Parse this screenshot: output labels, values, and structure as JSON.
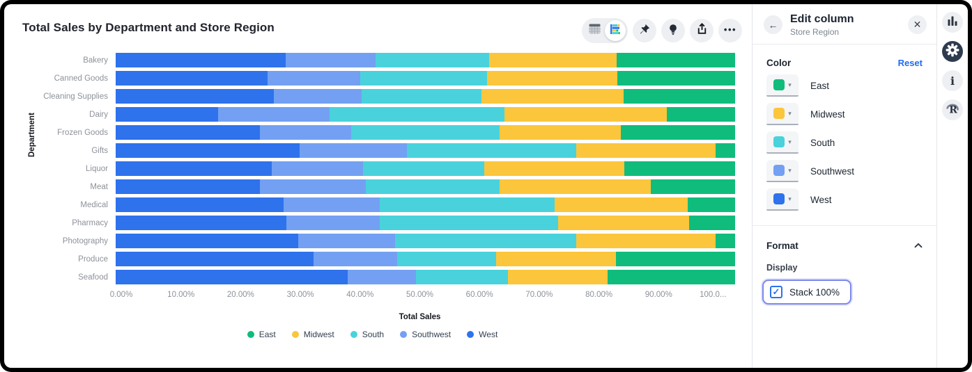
{
  "header": {
    "title": "Total Sales by Department and Store Region"
  },
  "toolbar": {
    "icons": [
      "table-view",
      "chart-view",
      "pin",
      "lightbulb",
      "share",
      "more"
    ]
  },
  "chart_data": {
    "type": "bar",
    "orientation": "horizontal",
    "stacked": true,
    "stack_100_percent": true,
    "title": "Total Sales by Department and Store Region",
    "xlabel": "Total Sales",
    "ylabel": "Department",
    "xlim": [
      0,
      100
    ],
    "grid": false,
    "x_ticks": [
      "0.00%",
      "10.00%",
      "20.00%",
      "30.00%",
      "40.00%",
      "50.00%",
      "60.00%",
      "70.00%",
      "80.00%",
      "90.00%",
      "100.0..."
    ],
    "categories": [
      "Bakery",
      "Canned Goods",
      "Cleaning Supplies",
      "Dairy",
      "Frozen Goods",
      "Gifts",
      "Liquor",
      "Meat",
      "Medical",
      "Pharmacy",
      "Photography",
      "Produce",
      "Seafood"
    ],
    "series": [
      {
        "name": "West",
        "color": "#2E72EC",
        "values": [
          27.5,
          24.5,
          25.5,
          16.5,
          23.3,
          29.7,
          25.2,
          23.3,
          27.1,
          27.6,
          29.5,
          32.0,
          37.5
        ]
      },
      {
        "name": "Southwest",
        "color": "#73A0F2",
        "values": [
          14.5,
          15.0,
          14.2,
          18.0,
          14.7,
          17.3,
          14.7,
          17.1,
          15.5,
          15.0,
          15.6,
          13.4,
          11.0
        ]
      },
      {
        "name": "South",
        "color": "#49D2DC",
        "values": [
          18.3,
          20.5,
          19.4,
          28.3,
          24.0,
          27.3,
          19.6,
          21.6,
          28.3,
          28.8,
          29.2,
          16.0,
          14.8
        ]
      },
      {
        "name": "Midwest",
        "color": "#FBC63C",
        "values": [
          20.6,
          21.0,
          22.9,
          26.2,
          19.6,
          22.6,
          22.6,
          24.4,
          21.4,
          21.2,
          22.6,
          19.4,
          16.1
        ]
      },
      {
        "name": "East",
        "color": "#10BC7C",
        "values": [
          19.1,
          19.0,
          18.0,
          11.0,
          18.4,
          3.1,
          17.9,
          13.6,
          7.7,
          7.4,
          3.1,
          19.2,
          20.6
        ]
      }
    ],
    "legend": {
      "position": "bottom",
      "order": [
        "East",
        "Midwest",
        "South",
        "Southwest",
        "West"
      ]
    }
  },
  "panel": {
    "title": "Edit column",
    "subtitle": "Store Region",
    "color_section": {
      "label": "Color",
      "reset_label": "Reset",
      "items": [
        {
          "name": "East",
          "color": "#10BC7C"
        },
        {
          "name": "Midwest",
          "color": "#FBC63C"
        },
        {
          "name": "South",
          "color": "#49D2DC"
        },
        {
          "name": "Southwest",
          "color": "#73A0F2"
        },
        {
          "name": "West",
          "color": "#2E72EC"
        }
      ]
    },
    "format_section": {
      "label": "Format",
      "display_label": "Display",
      "stack_checkbox": {
        "label": "Stack 100%",
        "checked": true
      }
    }
  },
  "right_rail": {
    "icons": [
      "chart",
      "settings",
      "info",
      "r-logo"
    ],
    "active": "settings"
  }
}
